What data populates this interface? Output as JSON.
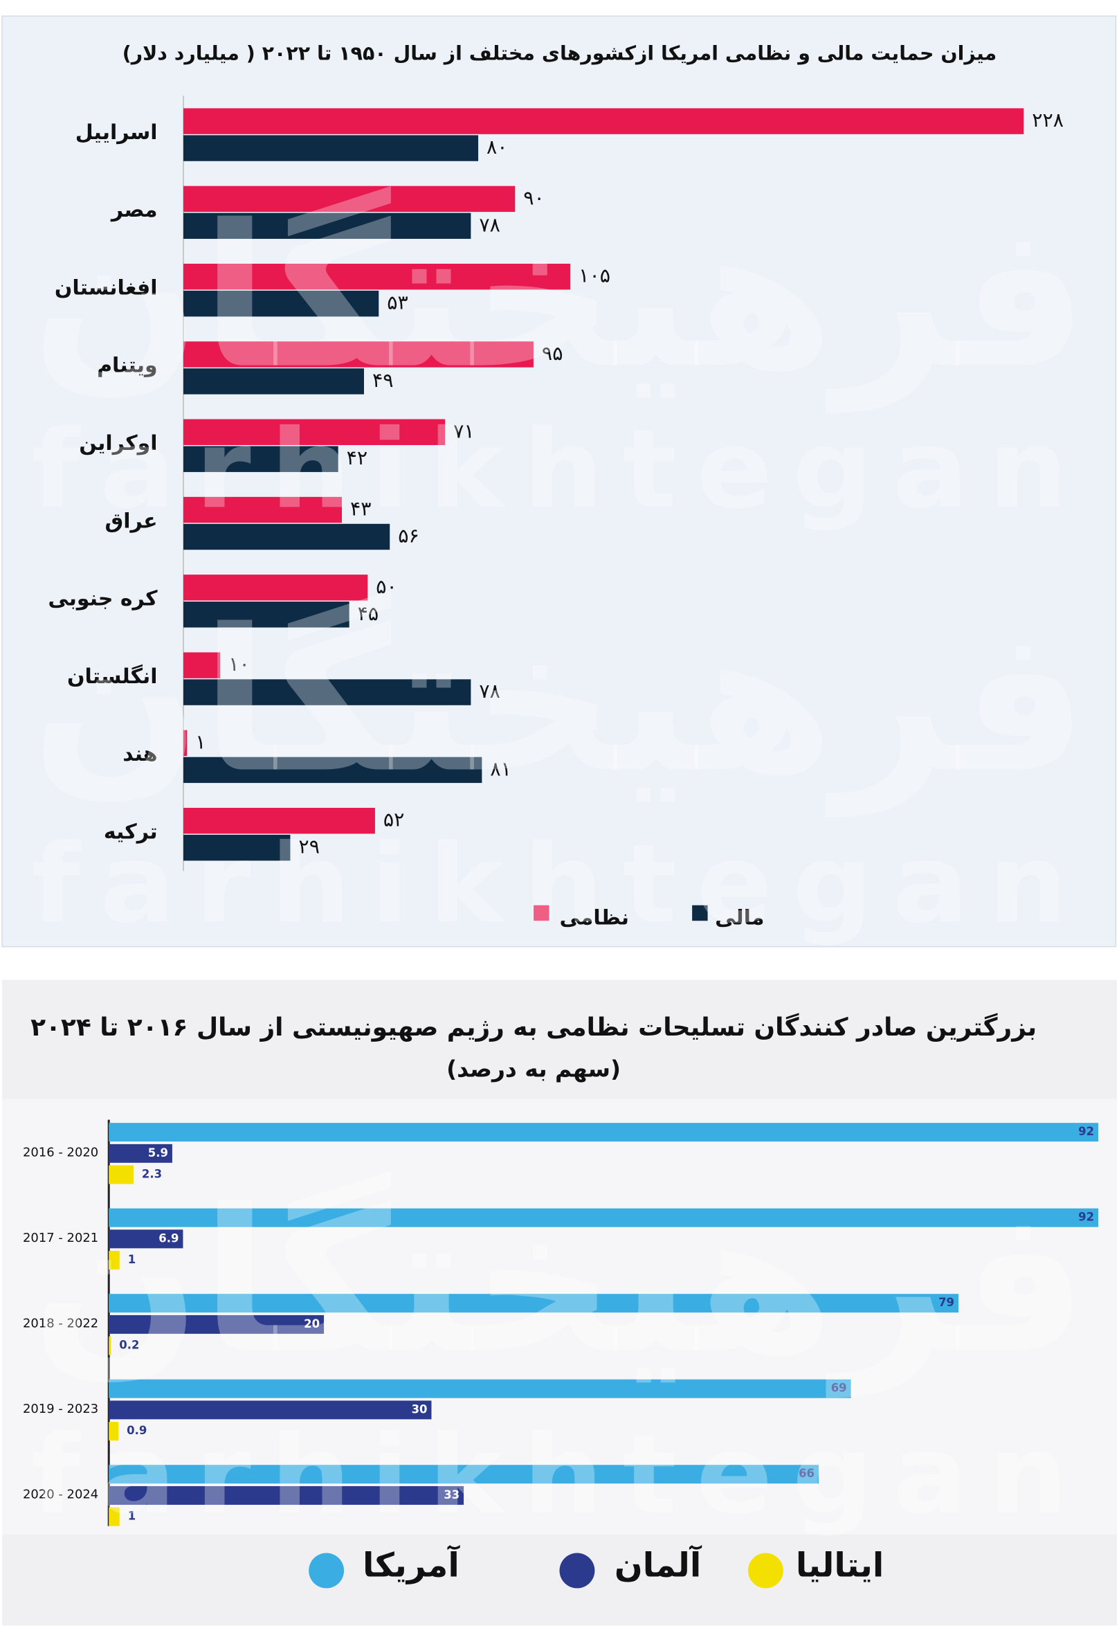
{
  "watermark": {
    "persian": "فرهیختگان",
    "latin": "farhikhtegan"
  },
  "chart_data": [
    {
      "type": "bar",
      "orientation": "horizontal",
      "title": "میزان حمایت مالی و نظامی امریکا ازکشورهای مختلف از سال ۱۹۵۰ تا ۲۰۲۲ ( میلیارد دلار)",
      "categories": [
        "اسراییل",
        "مصر",
        "افغانستان",
        "ویتنام",
        "اوکراین",
        "عراق",
        "کره جنوبی",
        "انگلستان",
        "هند",
        "ترکیه"
      ],
      "series": [
        {
          "name": "نظامی",
          "color": "#e8194f",
          "values": [
            228,
            90,
            105,
            95,
            71,
            43,
            50,
            10,
            1,
            52
          ],
          "value_labels": [
            "۲۲۸",
            "۹۰",
            "۱۰۵",
            "۹۵",
            "۷۱",
            "۴۳",
            "۵۰",
            "۱۰",
            "۱",
            "۵۲"
          ]
        },
        {
          "name": "مالی",
          "color": "#0d2b45",
          "values": [
            80,
            78,
            53,
            49,
            42,
            56,
            45,
            78,
            81,
            29
          ],
          "value_labels": [
            "۸۰",
            "۷۸",
            "۵۳",
            "۴۹",
            "۴۲",
            "۵۶",
            "۴۵",
            "۷۸",
            "۸۱",
            "۲۹"
          ]
        }
      ]
    },
    {
      "type": "bar",
      "orientation": "horizontal",
      "title": "بزرگترین صادر کنندگان تسلیحات نظامی به رژیم صهیونیستی از سال ۲۰۱۶ تا ۲۰۲۴",
      "subtitle": "(سهم به درصد)",
      "categories": [
        "2016 - 2020",
        "2017 - 2021",
        "2018 - 2022",
        "2019 - 2023",
        "2020 - 2024"
      ],
      "series": [
        {
          "name": "آمریکا",
          "color": "#3aaee2",
          "values": [
            92,
            92,
            79,
            69,
            66
          ]
        },
        {
          "name": "آلمان",
          "color": "#2b3a8c",
          "values": [
            5.9,
            6.9,
            20,
            30,
            33
          ]
        },
        {
          "name": "ایتالیا",
          "color": "#f3e000",
          "values": [
            2.3,
            1,
            0.2,
            0.9,
            1
          ]
        }
      ]
    }
  ]
}
